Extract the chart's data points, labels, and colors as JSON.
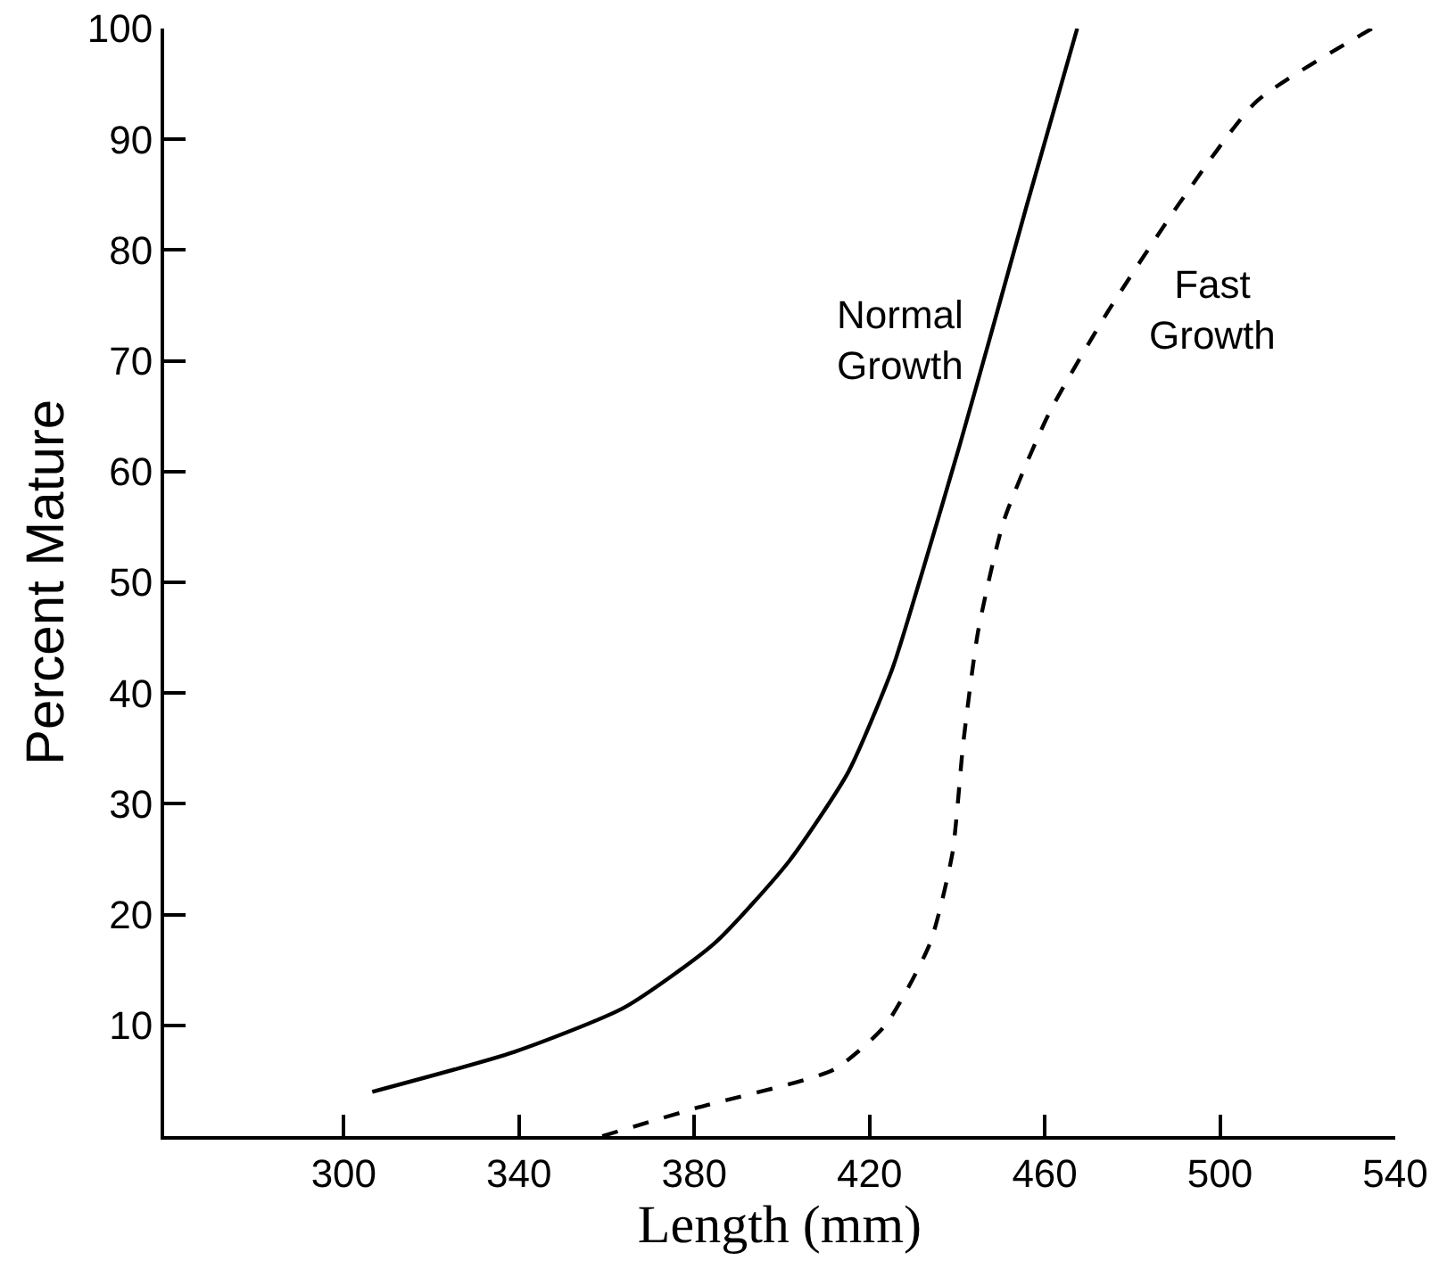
{
  "chart_data": {
    "type": "line",
    "xlabel": "Length (mm)",
    "ylabel": "Percent Mature",
    "xlim": [
      259,
      540
    ],
    "xticks": [
      300,
      340,
      380,
      420,
      460,
      500,
      540
    ],
    "ylim": [
      0,
      100
    ],
    "yticks": [
      10,
      20,
      30,
      40,
      50,
      60,
      70,
      80,
      90,
      100
    ],
    "legend": false,
    "marker": "none",
    "series": [
      {
        "name": "Normal Growth",
        "color": "#000000",
        "line_style": "solid",
        "x": [
          306.5,
          338.9,
          364,
          384.6,
          401.6,
          415.2,
          425.3,
          432.1,
          440.6,
          447.3,
          455.8,
          467.4
        ],
        "values": [
          4.0,
          7.6,
          11.6,
          17.4,
          24.8,
          32.9,
          42.3,
          51,
          62.4,
          71.8,
          83.9,
          100
        ]
      },
      {
        "name": "Fast Growth",
        "color": "#000000",
        "line_style": "dashed",
        "x": [
          359,
          381,
          411.8,
          423.6,
          433.8,
          438.9,
          441.4,
          444.8,
          450.7,
          460.9,
          474.5,
          491.4,
          508.3,
          534.7
        ],
        "values": [
          0,
          2.6,
          6,
          10,
          17.4,
          25.5,
          35.5,
          45.6,
          55.6,
          65.2,
          74.5,
          84.6,
          93.4,
          100
        ]
      }
    ]
  }
}
